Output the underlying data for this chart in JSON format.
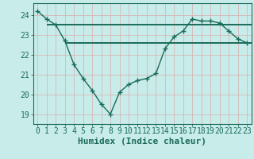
{
  "title": "",
  "xlabel": "Humidex (Indice chaleur)",
  "background_color": "#c8ece9",
  "grid_color": "#d4b8b8",
  "line_color": "#1a6b5a",
  "x_values": [
    0,
    1,
    2,
    3,
    4,
    5,
    6,
    7,
    8,
    9,
    10,
    11,
    12,
    13,
    14,
    15,
    16,
    17,
    18,
    19,
    20,
    21,
    22,
    23
  ],
  "y_main": [
    24.2,
    23.8,
    23.5,
    22.7,
    21.5,
    20.8,
    20.2,
    19.5,
    19.0,
    20.1,
    20.5,
    20.7,
    20.8,
    21.05,
    22.3,
    22.9,
    23.2,
    23.8,
    23.7,
    23.7,
    23.6,
    23.2,
    22.8,
    22.6
  ],
  "y_horiz1": 23.5,
  "y_horiz2": 22.6,
  "horiz1_xmin": 1.0,
  "horiz1_xmax": 23.5,
  "horiz2_xmin": 3.0,
  "horiz2_xmax": 23.5,
  "ylim": [
    18.5,
    24.6
  ],
  "xlim": [
    -0.5,
    23.5
  ],
  "yticks": [
    19,
    20,
    21,
    22,
    23,
    24
  ],
  "xticks": [
    0,
    1,
    2,
    3,
    4,
    5,
    6,
    7,
    8,
    9,
    10,
    11,
    12,
    13,
    14,
    15,
    16,
    17,
    18,
    19,
    20,
    21,
    22,
    23
  ],
  "tick_fontsize": 7,
  "xlabel_fontsize": 8
}
